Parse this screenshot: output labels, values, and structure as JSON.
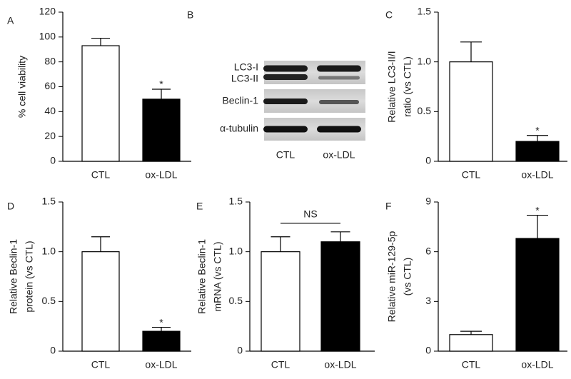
{
  "chart_data": [
    {
      "type": "bar",
      "panel": "A",
      "ylabel": [
        "% cell viability"
      ],
      "categories": [
        "CTL",
        "ox-LDL"
      ],
      "values": [
        93,
        50
      ],
      "errors": [
        6,
        8
      ],
      "colors": [
        "#ffffff",
        "#000000"
      ],
      "ylim": [
        0,
        120
      ],
      "yticks": [
        0,
        20,
        40,
        60,
        80,
        100,
        120
      ],
      "marker": "*"
    },
    {
      "type": "blot",
      "panel": "B",
      "bands": [
        "LC3-I",
        "LC3-II",
        "Beclin-1",
        "α-tubulin"
      ],
      "categories": [
        "CTL",
        "ox-LDL"
      ]
    },
    {
      "type": "bar",
      "panel": "C",
      "ylabel": [
        "Relative LC3-II/I",
        "ratio (vs CTL)"
      ],
      "categories": [
        "CTL",
        "ox-LDL"
      ],
      "values": [
        1.0,
        0.2
      ],
      "errors": [
        0.2,
        0.06
      ],
      "colors": [
        "#ffffff",
        "#000000"
      ],
      "ylim": [
        0,
        1.5
      ],
      "yticks": [
        0,
        0.5,
        {
          "value": 1,
          "label": "1.0"
        },
        1.5
      ],
      "marker": "*"
    },
    {
      "type": "bar",
      "panel": "D",
      "ylabel": [
        "Relative Beclin-1",
        "protein (vs CTL)"
      ],
      "categories": [
        "CTL",
        "ox-LDL"
      ],
      "values": [
        1.0,
        0.2
      ],
      "errors": [
        0.15,
        0.04
      ],
      "colors": [
        "#ffffff",
        "#000000"
      ],
      "ylim": [
        0,
        1.5
      ],
      "yticks": [
        0,
        0.5,
        {
          "value": 1,
          "label": "1.0"
        },
        1.5
      ],
      "marker": "*"
    },
    {
      "type": "bar",
      "panel": "E",
      "ylabel": [
        "Relative Beclin-1",
        "mRNA (vs CTL)"
      ],
      "categories": [
        "CTL",
        "ox-LDL"
      ],
      "values": [
        1.0,
        1.1
      ],
      "errors": [
        0.15,
        0.1
      ],
      "colors": [
        "#ffffff",
        "#000000"
      ],
      "ylim": [
        0,
        1.5
      ],
      "yticks": [
        0,
        0.5,
        {
          "value": 1,
          "label": "1.0"
        },
        1.5
      ],
      "bracket": "NS"
    },
    {
      "type": "bar",
      "panel": "F",
      "ylabel": [
        "Relative miR-129-5p",
        "(vs CTL)"
      ],
      "categories": [
        "CTL",
        "ox-LDL"
      ],
      "values": [
        1.0,
        6.8
      ],
      "errors": [
        0.2,
        1.4
      ],
      "colors": [
        "#ffffff",
        "#000000"
      ],
      "ylim": [
        0,
        9
      ],
      "yticks": [
        0,
        3,
        6,
        9
      ],
      "marker": "*"
    }
  ]
}
